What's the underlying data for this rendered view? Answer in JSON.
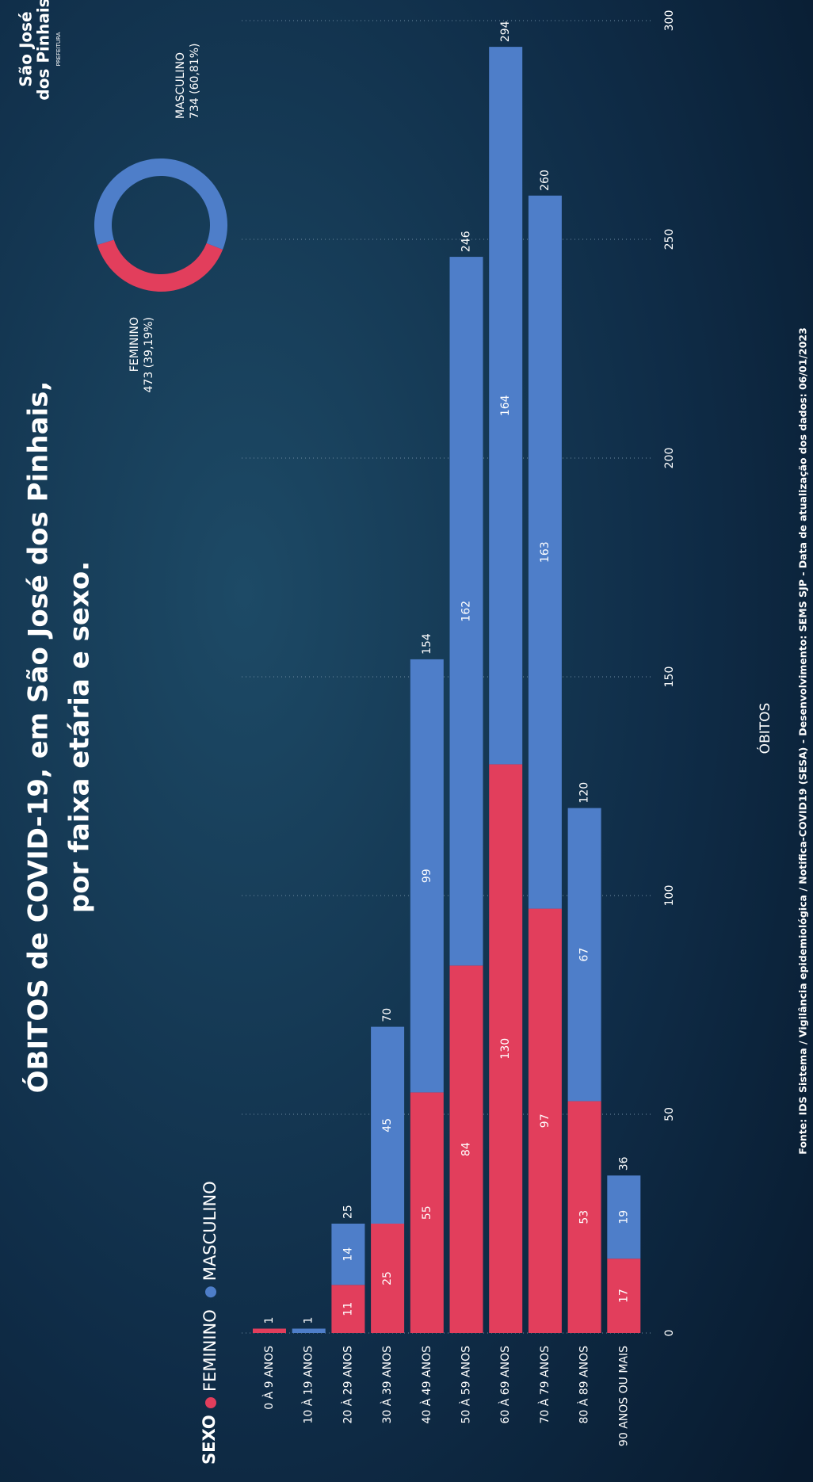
{
  "logo": {
    "line1": "São José",
    "line2": "dos Pinhais",
    "sub": "PREFEITURA"
  },
  "chart_data": [
    {
      "type": "stacked-bar-horizontal",
      "title": "ÓBITOS de COVID-19, em São José dos Pinhais,",
      "subtitle": "por faixa etária e sexo.",
      "legend_title": "SEXO",
      "x_label": "ÓBITOS",
      "footer": "Fonte: IDS Sistema / Vigilância epidemiológica / Notifica-COVID19 (SESA) - Desenvolvimento: SEMS SJP - Data de atualização dos dados: 06/01/2023",
      "categories": [
        "0 À 9 ANOS",
        "10 À 19 ANOS",
        "20 À 29 ANOS",
        "30 À 39 ANOS",
        "40 À 49 ANOS",
        "50 À 59 ANOS",
        "60 À 69 ANOS",
        "70 À 79 ANOS",
        "80 À 89 ANOS",
        "90 ANOS OU MAIS"
      ],
      "series": [
        {
          "name": "FEMININO",
          "color": "#e23e5c",
          "values": [
            1,
            0,
            11,
            25,
            55,
            84,
            130,
            97,
            53,
            17
          ]
        },
        {
          "name": "MASCULINO",
          "color": "#4e7ec9",
          "values": [
            0,
            1,
            14,
            45,
            99,
            162,
            164,
            163,
            67,
            19
          ]
        }
      ],
      "totals": [
        1,
        1,
        25,
        70,
        154,
        246,
        294,
        260,
        120,
        36
      ],
      "xlim": [
        0,
        300
      ],
      "xticks": [
        0,
        50,
        100,
        150,
        200,
        250,
        300
      ],
      "grid": true
    },
    {
      "type": "donut",
      "categories": [
        "FEMININO",
        "MASCULINO"
      ],
      "values": [
        473,
        734
      ],
      "value_labels": [
        "473 (39,19%)",
        "734 (60,81%)"
      ],
      "colors": [
        "#e23e5c",
        "#4e7ec9"
      ]
    }
  ]
}
